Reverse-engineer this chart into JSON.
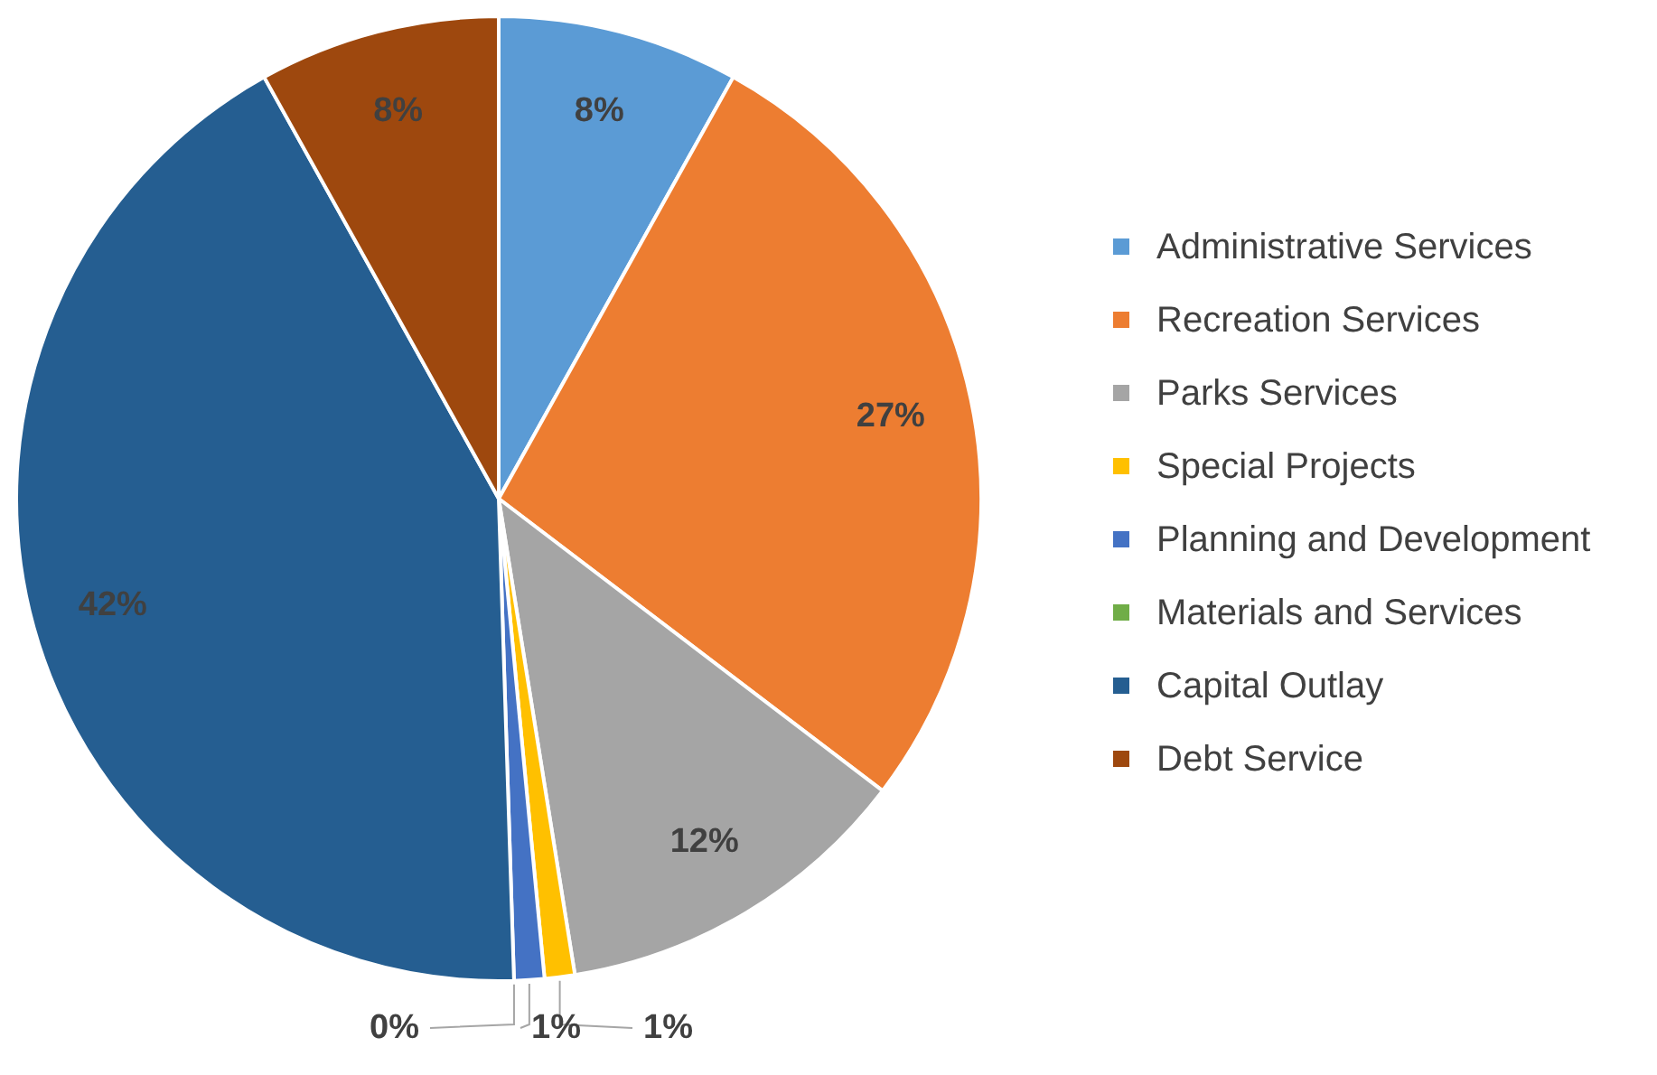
{
  "chart_data": {
    "type": "pie",
    "categories": [
      "Administrative Services",
      "Recreation Services",
      "Parks Services",
      "Special Projects",
      "Planning and Development",
      "Materials and Services",
      "Capital Outlay",
      "Debt Service"
    ],
    "values": [
      8,
      27,
      12,
      1,
      1,
      0,
      42,
      8
    ],
    "colors": [
      "#5b9bd5",
      "#ed7d31",
      "#a5a5a5",
      "#ffc000",
      "#4472c4",
      "#70ad47",
      "#255e91",
      "#9e480e"
    ],
    "value_labels": [
      "8%",
      "27%",
      "12%",
      "1%",
      "1%",
      "0%",
      "42%",
      "8%"
    ],
    "legend": "right"
  }
}
